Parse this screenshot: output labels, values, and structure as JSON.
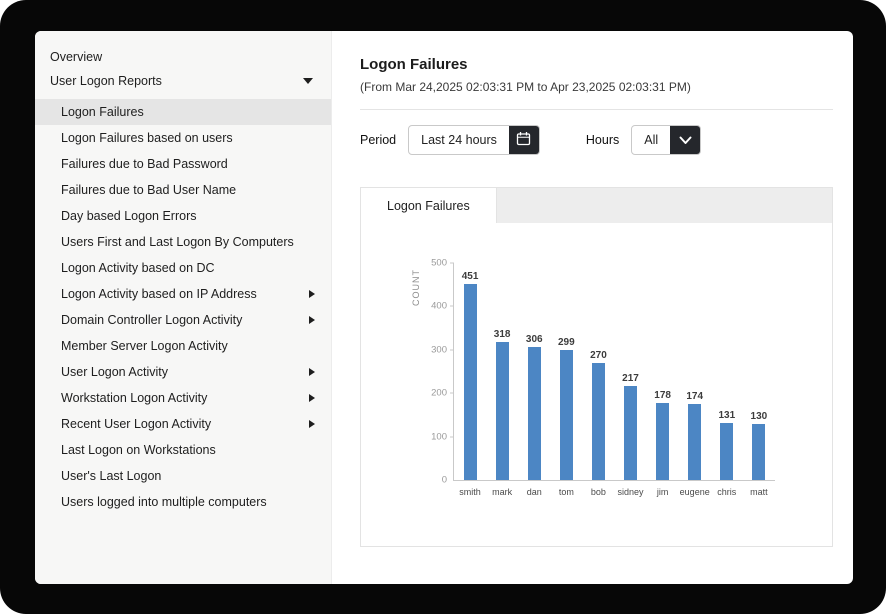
{
  "sidebar": {
    "overview_label": "Overview",
    "reports_label": "User Logon Reports",
    "items": [
      {
        "label": "Logon Failures",
        "selected": true,
        "arrow": false
      },
      {
        "label": "Logon Failures based on users",
        "selected": false,
        "arrow": false
      },
      {
        "label": "Failures due to Bad Password",
        "selected": false,
        "arrow": false
      },
      {
        "label": "Failures due to Bad User Name",
        "selected": false,
        "arrow": false
      },
      {
        "label": "Day based Logon Errors",
        "selected": false,
        "arrow": false
      },
      {
        "label": "Users First and Last Logon By Computers",
        "selected": false,
        "arrow": false
      },
      {
        "label": "Logon Activity based on DC",
        "selected": false,
        "arrow": false
      },
      {
        "label": "Logon Activity based on IP Address",
        "selected": false,
        "arrow": true
      },
      {
        "label": "Domain Controller Logon Activity",
        "selected": false,
        "arrow": true
      },
      {
        "label": "Member Server Logon Activity",
        "selected": false,
        "arrow": false
      },
      {
        "label": "User Logon Activity",
        "selected": false,
        "arrow": true
      },
      {
        "label": "Workstation Logon Activity",
        "selected": false,
        "arrow": true
      },
      {
        "label": "Recent User Logon Activity",
        "selected": false,
        "arrow": true
      },
      {
        "label": "Last Logon on Workstations",
        "selected": false,
        "arrow": false
      },
      {
        "label": "User's Last Logon",
        "selected": false,
        "arrow": false
      },
      {
        "label": "Users logged into multiple computers",
        "selected": false,
        "arrow": false
      }
    ]
  },
  "main": {
    "title": "Logon Failures",
    "date_range": "(From Mar 24,2025 02:03:31 PM to Apr 23,2025 02:03:31 PM)",
    "controls": {
      "period_label": "Period",
      "period_value": "Last 24 hours",
      "hours_label": "Hours",
      "hours_value": "All"
    },
    "panel": {
      "tab_label": "Logon Failures"
    }
  },
  "chart_data": {
    "type": "bar",
    "title": "Logon Failures",
    "categories": [
      "smith",
      "mark",
      "dan",
      "tom",
      "bob",
      "sidney",
      "jim",
      "eugene",
      "chris",
      "matt"
    ],
    "values": [
      451,
      318,
      306,
      299,
      270,
      217,
      178,
      174,
      131,
      130
    ],
    "xlabel": "",
    "ylabel": "COUNT",
    "ylim": [
      0,
      500
    ],
    "yticks": [
      0,
      100,
      200,
      300,
      400,
      500
    ],
    "bar_color": "#4c86c4",
    "grid": false,
    "legend": false
  }
}
